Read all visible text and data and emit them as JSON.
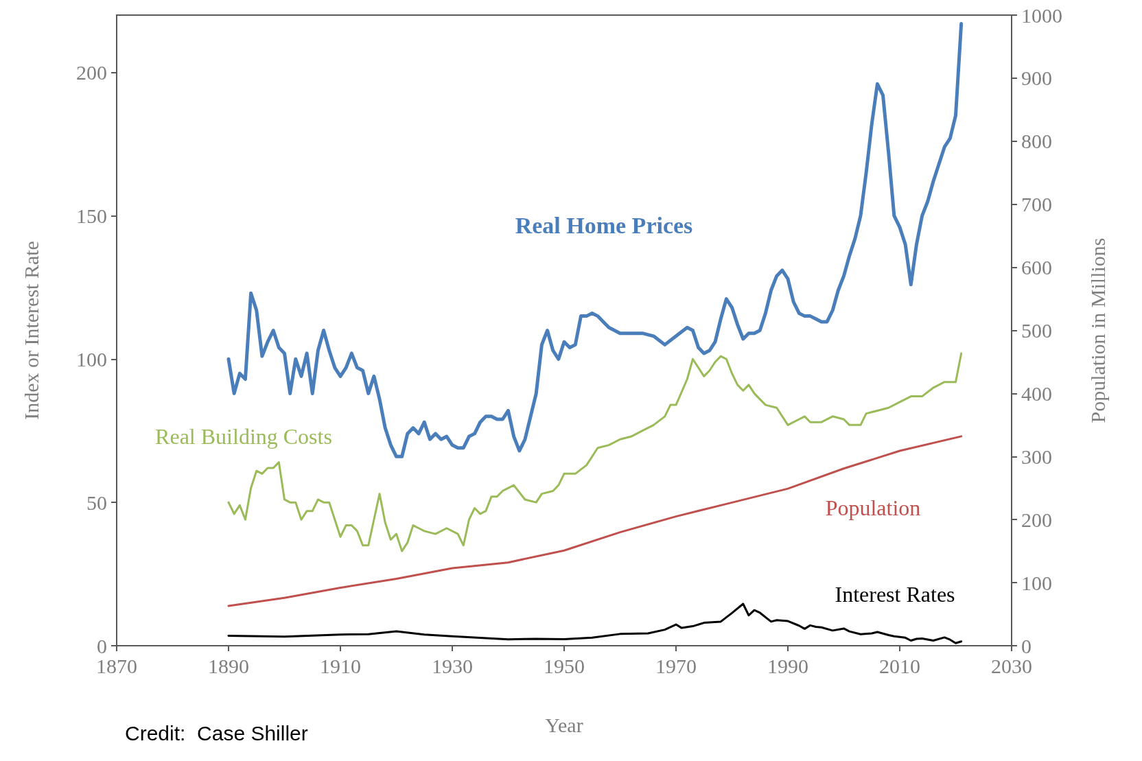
{
  "chart_data": {
    "type": "line",
    "xlabel": "Year",
    "ylabel": "Index or Interest Rate",
    "y2label": "Population in Millions",
    "xlim": [
      1870,
      2030
    ],
    "xticks": [
      1870,
      1890,
      1910,
      1930,
      1950,
      1970,
      1990,
      2010,
      2030
    ],
    "ylim": [
      0,
      220
    ],
    "yticks": [
      0,
      50,
      100,
      150,
      200
    ],
    "y2lim": [
      0,
      1000
    ],
    "y2ticks": [
      0,
      100,
      200,
      300,
      400,
      500,
      600,
      700,
      800,
      900,
      1000
    ],
    "grid": false,
    "legend": false,
    "marker": "none",
    "line_style": "solid",
    "annotations": [
      "Credit:  Case Shiller"
    ],
    "series": [
      {
        "name": "Real Home Prices",
        "color": "#4a7ebb",
        "x": [
          1890,
          1891,
          1892,
          1893,
          1894,
          1895,
          1896,
          1897,
          1898,
          1899,
          1900,
          1901,
          1902,
          1903,
          1904,
          1905,
          1906,
          1907,
          1908,
          1909,
          1910,
          1911,
          1912,
          1913,
          1914,
          1915,
          1916,
          1917,
          1918,
          1919,
          1920,
          1921,
          1922,
          1923,
          1924,
          1925,
          1926,
          1927,
          1928,
          1929,
          1930,
          1931,
          1932,
          1933,
          1934,
          1935,
          1936,
          1937,
          1938,
          1939,
          1940,
          1941,
          1942,
          1943,
          1944,
          1945,
          1946,
          1947,
          1948,
          1949,
          1950,
          1951,
          1952,
          1953,
          1954,
          1955,
          1956,
          1957,
          1958,
          1959,
          1960,
          1962,
          1964,
          1966,
          1968,
          1970,
          1972,
          1973,
          1974,
          1975,
          1976,
          1977,
          1978,
          1979,
          1980,
          1981,
          1982,
          1983,
          1984,
          1985,
          1986,
          1987,
          1988,
          1989,
          1990,
          1991,
          1992,
          1993,
          1994,
          1995,
          1996,
          1997,
          1998,
          1999,
          2000,
          2001,
          2002,
          2003,
          2004,
          2005,
          2006,
          2007,
          2008,
          2009,
          2010,
          2011,
          2012,
          2013,
          2014,
          2015,
          2016,
          2017,
          2018,
          2019,
          2020,
          2021
        ],
        "values": [
          100,
          88,
          95,
          93,
          123,
          117,
          101,
          106,
          110,
          104,
          102,
          88,
          100,
          94,
          102,
          88,
          103,
          110,
          103,
          97,
          94,
          97,
          102,
          97,
          96,
          88,
          94,
          86,
          76,
          70,
          66,
          66,
          74,
          76,
          74,
          78,
          72,
          74,
          72,
          73,
          70,
          69,
          69,
          73,
          74,
          78,
          80,
          80,
          79,
          79,
          82,
          73,
          68,
          72,
          80,
          88,
          105,
          110,
          103,
          100,
          106,
          104,
          105,
          115,
          115,
          116,
          115,
          113,
          111,
          110,
          109,
          109,
          109,
          108,
          105,
          108,
          111,
          110,
          104,
          102,
          103,
          106,
          114,
          121,
          118,
          112,
          107,
          109,
          109,
          110,
          116,
          124,
          129,
          131,
          128,
          120,
          116,
          115,
          115,
          114,
          113,
          113,
          117,
          124,
          129,
          136,
          142,
          150,
          165,
          182,
          196,
          192,
          172,
          150,
          146,
          140,
          126,
          140,
          150,
          155,
          162,
          168,
          174,
          177,
          185,
          217
        ]
      },
      {
        "name": "Real Building Costs",
        "color": "#9bbb59",
        "x": [
          1890,
          1891,
          1892,
          1893,
          1894,
          1895,
          1896,
          1897,
          1898,
          1899,
          1900,
          1901,
          1902,
          1903,
          1904,
          1905,
          1906,
          1907,
          1908,
          1909,
          1910,
          1911,
          1912,
          1913,
          1914,
          1915,
          1916,
          1917,
          1918,
          1919,
          1920,
          1921,
          1922,
          1923,
          1924,
          1925,
          1927,
          1929,
          1931,
          1932,
          1933,
          1934,
          1935,
          1936,
          1937,
          1938,
          1939,
          1941,
          1943,
          1945,
          1946,
          1948,
          1949,
          1950,
          1952,
          1954,
          1956,
          1958,
          1960,
          1962,
          1964,
          1966,
          1968,
          1969,
          1970,
          1972,
          1973,
          1974,
          1975,
          1976,
          1977,
          1978,
          1979,
          1980,
          1981,
          1982,
          1983,
          1984,
          1986,
          1988,
          1990,
          1992,
          1993,
          1994,
          1996,
          1998,
          2000,
          2001,
          2003,
          2004,
          2006,
          2008,
          2010,
          2012,
          2014,
          2016,
          2018,
          2020,
          2021
        ],
        "values": [
          50,
          46,
          49,
          44,
          55,
          61,
          60,
          62,
          62,
          64,
          51,
          50,
          50,
          44,
          47,
          47,
          51,
          50,
          50,
          44,
          38,
          42,
          42,
          40,
          35,
          35,
          44,
          53,
          43,
          37,
          39,
          33,
          36,
          42,
          41,
          40,
          39,
          41,
          39,
          35,
          44,
          48,
          46,
          47,
          52,
          52,
          54,
          56,
          51,
          50,
          53,
          54,
          56,
          60,
          60,
          63,
          69,
          70,
          72,
          73,
          75,
          77,
          80,
          84,
          84,
          93,
          100,
          97,
          94,
          96,
          99,
          101,
          100,
          95,
          91,
          89,
          91,
          88,
          84,
          83,
          77,
          79,
          80,
          78,
          78,
          80,
          79,
          77,
          77,
          81,
          82,
          83,
          85,
          87,
          87,
          90,
          92,
          92,
          102
        ]
      },
      {
        "name": "Population",
        "color": "#c0504d",
        "axis": "y2",
        "x": [
          1890,
          1900,
          1910,
          1920,
          1930,
          1940,
          1950,
          1960,
          1970,
          1980,
          1990,
          2000,
          2010,
          2021
        ],
        "values": [
          63,
          76,
          92,
          106,
          123,
          132,
          151,
          180,
          205,
          227,
          249,
          281,
          309,
          332
        ]
      },
      {
        "name": "Interest Rates",
        "color": "#000000",
        "x": [
          1890,
          1900,
          1910,
          1915,
          1920,
          1925,
          1930,
          1940,
          1945,
          1950,
          1955,
          1960,
          1965,
          1968,
          1970,
          1971,
          1973,
          1975,
          1978,
          1980,
          1982,
          1983,
          1984,
          1985,
          1987,
          1988,
          1990,
          1992,
          1993,
          1994,
          1995,
          1996,
          1998,
          2000,
          2001,
          2003,
          2005,
          2006,
          2008,
          2009,
          2011,
          2012,
          2013,
          2014,
          2016,
          2018,
          2019,
          2020,
          2021
        ],
        "values": [
          3.5,
          3.2,
          3.9,
          4.0,
          5.0,
          3.9,
          3.3,
          2.2,
          2.4,
          2.3,
          2.8,
          4.1,
          4.3,
          5.6,
          7.4,
          6.2,
          6.8,
          8.0,
          8.4,
          11.4,
          14.6,
          10.6,
          12.4,
          11.5,
          8.4,
          8.9,
          8.6,
          7.0,
          5.9,
          7.1,
          6.6,
          6.4,
          5.3,
          6.0,
          5.0,
          4.0,
          4.3,
          4.8,
          3.7,
          3.3,
          2.8,
          1.8,
          2.4,
          2.5,
          1.8,
          2.9,
          2.1,
          0.9,
          1.5
        ]
      }
    ]
  }
}
